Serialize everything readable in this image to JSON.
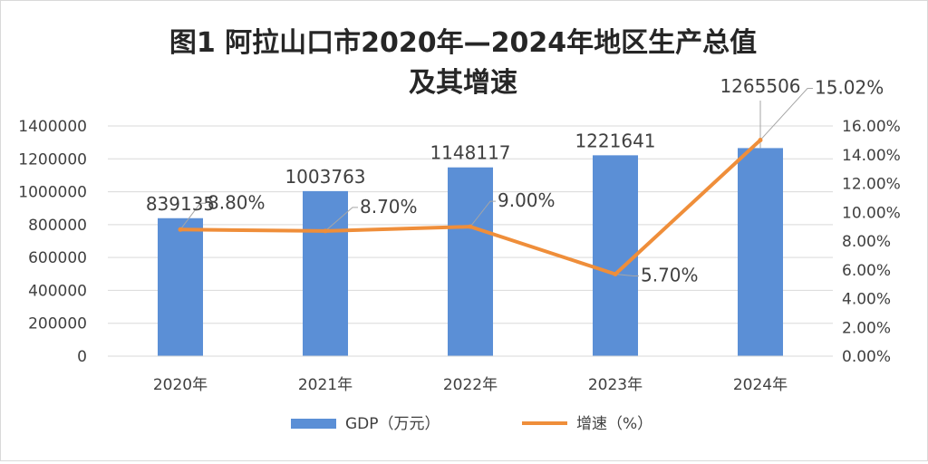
{
  "chart_data": {
    "type": "bar+line",
    "title_line1": "图1 阿拉山口市2020年—2024年地区生产总值",
    "title_line2": "及其增速",
    "categories": [
      "2020年",
      "2021年",
      "2022年",
      "2023年",
      "2024年"
    ],
    "series": [
      {
        "name": "GDP（万元）",
        "type": "bar",
        "axis": "left",
        "values": [
          839135,
          1003763,
          1148117,
          1221641,
          1265506
        ],
        "labels": [
          "839135",
          "1003763",
          "1148117",
          "1221641",
          "1265506"
        ],
        "color": "#5b8fd6"
      },
      {
        "name": "增速（%）",
        "type": "line",
        "axis": "right",
        "values": [
          8.8,
          8.7,
          9.0,
          5.7,
          15.02
        ],
        "labels": [
          "8.80%",
          "8.70%",
          "9.00%",
          "5.70%",
          "15.02%"
        ],
        "color": "#ef8e3a"
      }
    ],
    "y_left": {
      "min": 0,
      "max": 1400000,
      "step": 200000,
      "ticks": [
        "0",
        "200000",
        "400000",
        "600000",
        "800000",
        "1000000",
        "1200000",
        "1400000"
      ]
    },
    "y_right": {
      "min": 0,
      "max": 16,
      "step": 2,
      "ticks": [
        "0.00%",
        "2.00%",
        "4.00%",
        "6.00%",
        "8.00%",
        "10.00%",
        "12.00%",
        "14.00%",
        "16.00%"
      ]
    },
    "legend_position": "bottom",
    "grid": true
  },
  "colors": {
    "bar": "#5b8fd6",
    "line": "#ef8e3a",
    "grid": "#d9d9d9",
    "text": "#404040",
    "leader": "#a6a6a6"
  }
}
